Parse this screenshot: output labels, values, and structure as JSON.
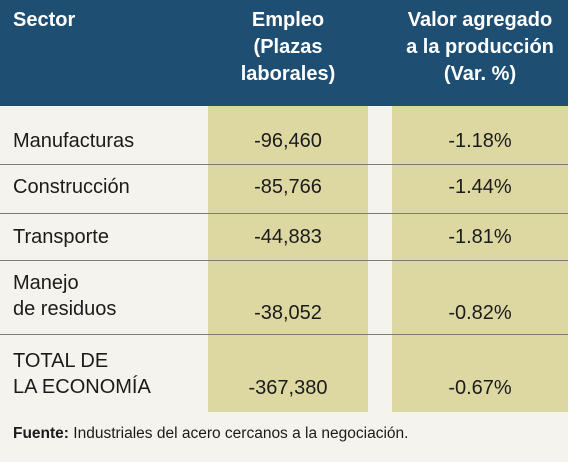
{
  "chart_data": {
    "type": "table",
    "columns": [
      "Sector",
      "Empleo\n(Plazas\nlaborales)",
      "Valor agregado\na la producción\n(Var. %)"
    ],
    "rows": [
      {
        "sector": "Manufacturas",
        "empleo": "-96,460",
        "valor": "-1.18%"
      },
      {
        "sector": "Construcción",
        "empleo": "-85,766",
        "valor": "-1.44%"
      },
      {
        "sector": "Transporte",
        "empleo": "-44,883",
        "valor": "-1.81%"
      },
      {
        "sector": "Manejo\nde residuos",
        "empleo": "-38,052",
        "valor": "-0.82%"
      },
      {
        "sector": "TOTAL DE\nLA ECONOMÍA",
        "empleo": "-367,380",
        "valor": "-0.67%"
      }
    ],
    "source_label": "Fuente:",
    "source_text": " Industriales del acero cercanos a la negociación."
  },
  "colors": {
    "header_bg": "#1f4e73",
    "highlight_col": "#ddd8a2",
    "background": "#f4f3ee"
  }
}
